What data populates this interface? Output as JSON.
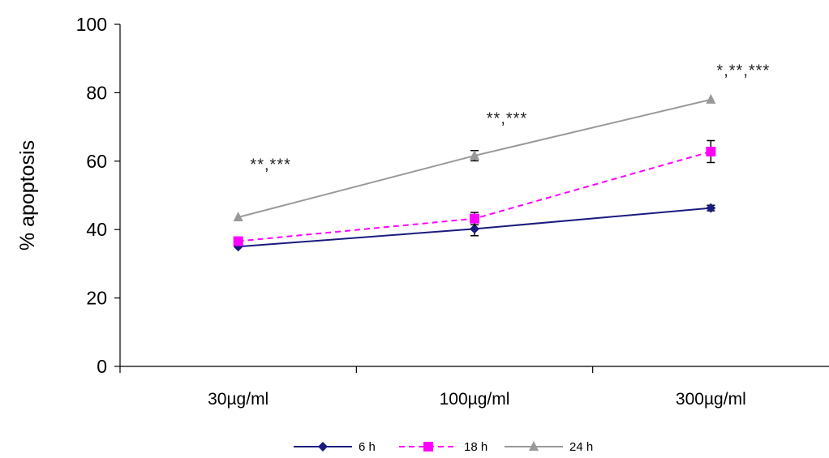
{
  "chart_data": {
    "type": "line",
    "title": "",
    "xlabel": "",
    "ylabel": "% apoptosis",
    "ylim": [
      0,
      100
    ],
    "yticks": [
      "0",
      "20",
      "40",
      "60",
      "80",
      "100"
    ],
    "categories": [
      "30µg/ml",
      "100µg/ml",
      "300µg/ml"
    ],
    "series": [
      {
        "name": "6 h",
        "values": [
          35,
          40.2,
          46.3
        ],
        "errors": [
          0.5,
          2.0,
          0.8
        ],
        "color": "#1a1a80",
        "dash": "solid",
        "marker": "diamond"
      },
      {
        "name": "18 h",
        "values": [
          36.6,
          43.2,
          62.8
        ],
        "errors": [
          0.5,
          1.8,
          3.2
        ],
        "color": "#ff00ff",
        "dash": "dashed",
        "marker": "square"
      },
      {
        "name": "24 h",
        "values": [
          43.6,
          61.6,
          78.0
        ],
        "errors": [
          0.4,
          1.5,
          0.4
        ],
        "color": "#999999",
        "dash": "solid",
        "marker": "triangle"
      }
    ],
    "annotations": [
      {
        "category": 0,
        "value": 57.5,
        "text": "**,***"
      },
      {
        "category": 1,
        "value": 71,
        "text": "**,***"
      },
      {
        "category": 2,
        "value": 85,
        "text": "*,**,***"
      }
    ],
    "legend": "bottom-center",
    "grid": false
  }
}
